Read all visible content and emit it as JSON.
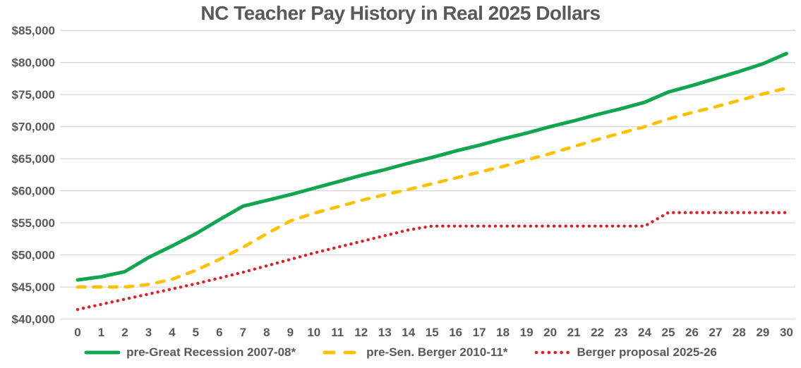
{
  "title": "NC Teacher Pay History in Real 2025 Dollars",
  "colors": {
    "text": "#595959",
    "grid": "#D9D9D9",
    "background": "#FFFFFF",
    "green": "#10A54E",
    "gold": "#FFC000",
    "red": "#E01E25"
  },
  "chart_data": {
    "type": "line",
    "title": "NC Teacher Pay History in Real 2025 Dollars",
    "xlabel": "",
    "ylabel": "",
    "grid": "horizontal",
    "legend_position": "bottom",
    "ylim": [
      40000,
      85000
    ],
    "y_ticks": [
      {
        "value": 40000,
        "label": "$40,000"
      },
      {
        "value": 45000,
        "label": "$45,000"
      },
      {
        "value": 50000,
        "label": "$50,000"
      },
      {
        "value": 55000,
        "label": "$55,000"
      },
      {
        "value": 60000,
        "label": "$60,000"
      },
      {
        "value": 65000,
        "label": "$65,000"
      },
      {
        "value": 70000,
        "label": "$70,000"
      },
      {
        "value": 75000,
        "label": "$75,000"
      },
      {
        "value": 80000,
        "label": "$80,000"
      },
      {
        "value": 85000,
        "label": "$85,000"
      }
    ],
    "x": [
      0,
      1,
      2,
      3,
      4,
      5,
      6,
      7,
      8,
      9,
      10,
      11,
      12,
      13,
      14,
      15,
      16,
      17,
      18,
      19,
      20,
      21,
      22,
      23,
      24,
      25,
      26,
      27,
      28,
      29,
      30
    ],
    "series": [
      {
        "name": "pre-Great Recession 2007-08*",
        "color": "#10A54E",
        "style": "solid",
        "values": [
          46100,
          46600,
          47400,
          49600,
          51400,
          53300,
          55500,
          57600,
          58500,
          59400,
          60400,
          61400,
          62400,
          63300,
          64300,
          65200,
          66200,
          67100,
          68100,
          69000,
          70000,
          70900,
          71900,
          72800,
          73800,
          75400,
          76400,
          77500,
          78600,
          79800,
          81400
        ]
      },
      {
        "name": "pre-Sen. Berger 2010-11*",
        "color": "#FFC000",
        "style": "dashed",
        "values": [
          45000,
          45000,
          45000,
          45400,
          46200,
          47600,
          49300,
          51200,
          53300,
          55300,
          56500,
          57500,
          58500,
          59400,
          60200,
          61100,
          62000,
          62900,
          63800,
          64800,
          65800,
          66900,
          68000,
          69000,
          70000,
          71200,
          72200,
          73100,
          74100,
          75100,
          76000
        ]
      },
      {
        "name": "Berger proposal 2025-26",
        "color": "#E01E25",
        "style": "dotted",
        "values": [
          41500,
          42300,
          43100,
          43900,
          44700,
          45500,
          46400,
          47300,
          48300,
          49300,
          50300,
          51200,
          52100,
          53000,
          53900,
          54500,
          54500,
          54500,
          54500,
          54500,
          54500,
          54500,
          54500,
          54500,
          54500,
          56600,
          56600,
          56600,
          56600,
          56600,
          56600
        ]
      }
    ]
  }
}
